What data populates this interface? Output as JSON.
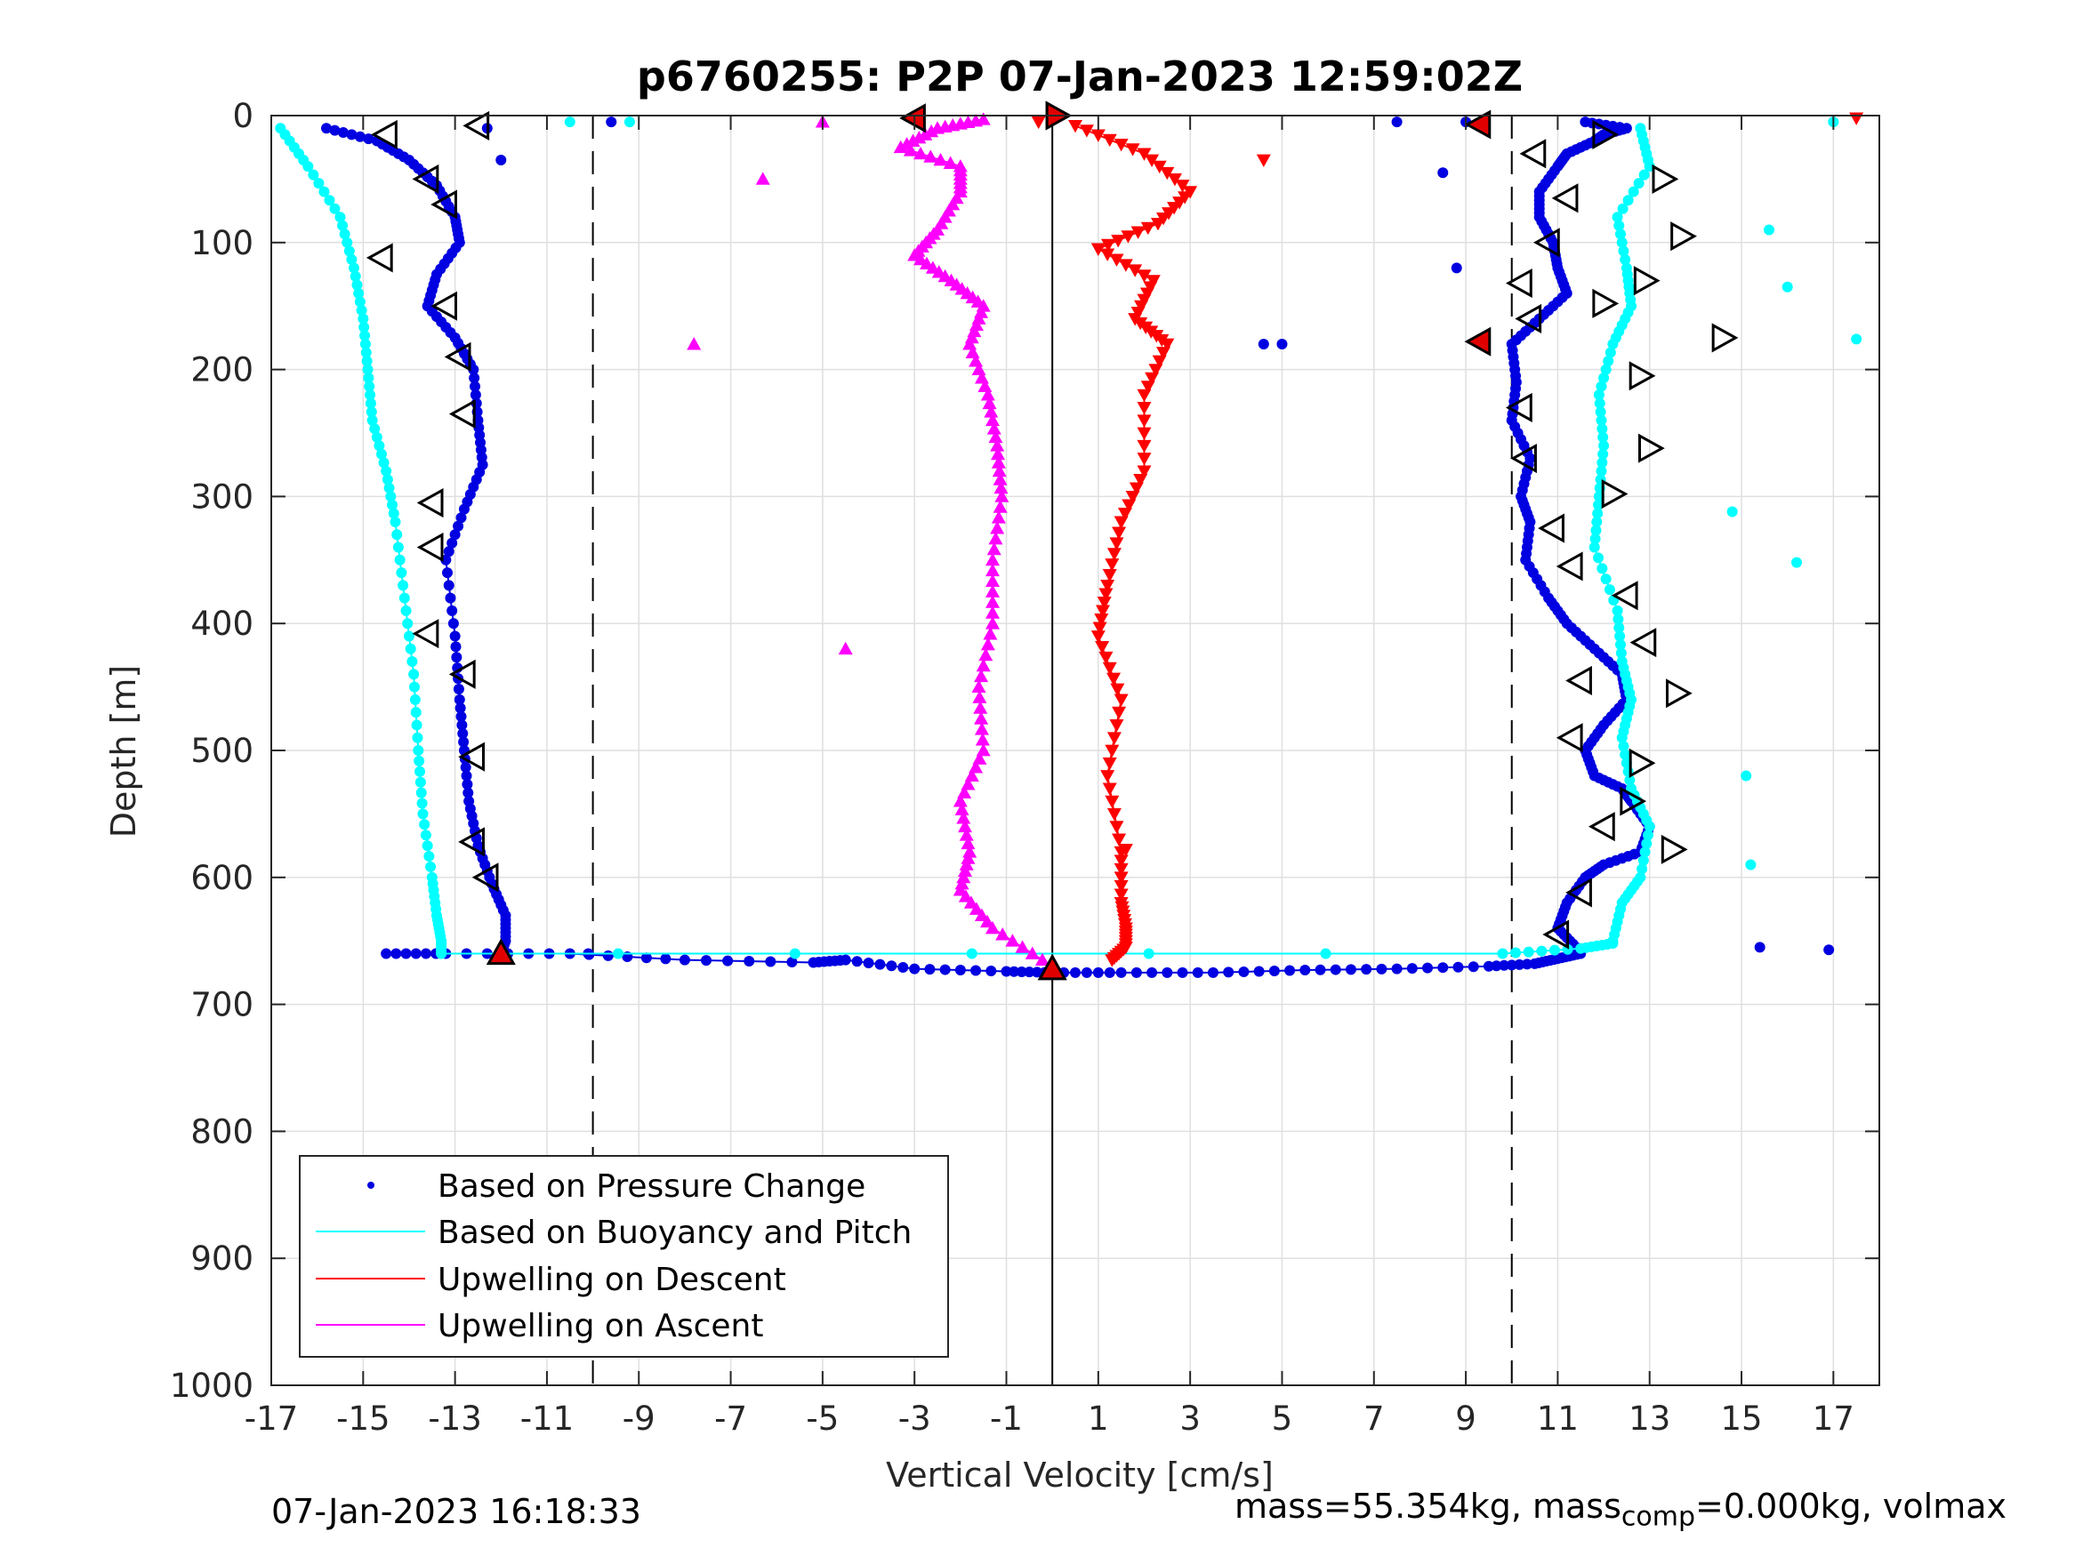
{
  "chart_data": {
    "type": "scatter",
    "title": "p6760255: P2P 07-Jan-2023 12:59:02Z",
    "xlabel": "Vertical Velocity [cm/s]",
    "ylabel": "Depth [m]",
    "xlim": [
      -17,
      18
    ],
    "ylim": [
      0,
      1000
    ],
    "y_reversed": true,
    "grid": true,
    "x_ticks": [
      -17,
      -15,
      -13,
      -11,
      -9,
      -7,
      -5,
      -3,
      -1,
      1,
      3,
      5,
      7,
      9,
      11,
      13,
      15,
      17
    ],
    "x_tick_labels": [
      "-17",
      "-15",
      "-13",
      "-11",
      "-9",
      "-7",
      "-5",
      "-3",
      "-1",
      "1",
      "3",
      "5",
      "7",
      "9",
      "11",
      "13",
      "15",
      "17"
    ],
    "y_ticks": [
      0,
      100,
      200,
      300,
      400,
      500,
      600,
      700,
      800,
      900,
      1000
    ],
    "y_tick_labels": [
      "0",
      "100",
      "200",
      "300",
      "400",
      "500",
      "600",
      "700",
      "800",
      "900",
      "1000"
    ],
    "reference_lines": [
      {
        "x": -10,
        "style": "dashed"
      },
      {
        "x": 10,
        "style": "dashed"
      },
      {
        "x": 0,
        "style": "solid"
      }
    ],
    "legend_position": "bottom-left",
    "legend": [
      {
        "label": "Based on Pressure Change",
        "color": "#0000e0",
        "marker": "dot"
      },
      {
        "label": "Based on Buoyancy and Pitch",
        "color": "#00ffff",
        "marker": "line"
      },
      {
        "label": "Upwelling on Descent",
        "color": "#ff0000",
        "marker": "line"
      },
      {
        "label": "Upwelling on Ascent",
        "color": "#ff00ff",
        "marker": "line"
      }
    ],
    "series": [
      {
        "name": "Based on Pressure Change",
        "color": "#0000e0",
        "segments": [
          {
            "x": [
              -15.8,
              -14.7,
              -14.0,
              -13.4,
              -13.0,
              -12.9,
              -13.4,
              -13.6,
              -13.0,
              -12.6,
              -12.5,
              -12.4,
              -12.8,
              -13.2,
              -13.0,
              -12.9,
              -12.8,
              -12.7,
              -12.5,
              -12.2,
              -11.9,
              -11.9,
              -12.0
            ],
            "y": [
              10,
              20,
              35,
              55,
              80,
              100,
              125,
              150,
              175,
              200,
              240,
              275,
              310,
              350,
              410,
              460,
              500,
              540,
              575,
              605,
              630,
              650,
              660
            ]
          },
          {
            "x": [
              -14.5,
              -13.2,
              -10.5,
              -8.0,
              -5.2,
              -4.5,
              -3.0,
              -1.0,
              0.0,
              1.5,
              3.5,
              5.5,
              7.5,
              9.5,
              10.5,
              11.0,
              11.5
            ],
            "y": [
              660,
              660,
              660,
              665,
              667,
              665,
              672,
              674,
              675,
              675,
              675,
              673,
              672,
              670,
              668,
              664,
              660
            ]
          },
          {
            "x": [
              11.4,
              11.0,
              11.2,
              11.6,
              12.0,
              12.8,
              13.0,
              12.6,
              12.4,
              11.8,
              11.6,
              12.0,
              12.5,
              12.4,
              11.8,
              11.2,
              10.8,
              10.3,
              10.4,
              10.2,
              10.4,
              10.0,
              10.1,
              10.0,
              10.6,
              11.2,
              11.0,
              10.9,
              10.6,
              10.6,
              11.0,
              11.2,
              11.8,
              12.0,
              12.5,
              11.6
            ],
            "y": [
              655,
              640,
              620,
              600,
              590,
              580,
              560,
              540,
              530,
              520,
              500,
              480,
              460,
              440,
              420,
              400,
              380,
              350,
              320,
              300,
              270,
              240,
              210,
              180,
              160,
              140,
              120,
              100,
              80,
              60,
              40,
              30,
              20,
              15,
              10,
              5
            ]
          }
        ],
        "outliers": [
          {
            "x": 9.0,
            "y": 5
          },
          {
            "x": 7.5,
            "y": 5
          },
          {
            "x": 8.5,
            "y": 45
          },
          {
            "x": 8.8,
            "y": 120
          },
          {
            "x": 4.6,
            "y": 180
          },
          {
            "x": 5.0,
            "y": 180
          },
          {
            "x": 15.4,
            "y": 655
          },
          {
            "x": 16.9,
            "y": 657
          },
          {
            "x": -10.1,
            "y": 660
          },
          {
            "x": -12.3,
            "y": 10
          },
          {
            "x": -12.0,
            "y": 35
          },
          {
            "x": -9.6,
            "y": 5
          }
        ]
      },
      {
        "name": "Based on Buoyancy and Pitch",
        "color": "#00ffff",
        "segments": [
          {
            "x": [
              -16.8,
              -16.2,
              -15.5,
              -15.2,
              -15.0,
              -14.9,
              -14.8,
              -14.5,
              -14.3,
              -14.1,
              -13.9,
              -13.8,
              -13.7,
              -13.5,
              -13.4,
              -13.3,
              -13.3
            ],
            "y": [
              10,
              40,
              80,
              120,
              160,
              200,
              240,
              280,
              320,
              380,
              440,
              500,
              550,
              600,
              630,
              650,
              660
            ]
          },
          {
            "x": [
              -13.3,
              9.8,
              11.5,
              12.2
            ],
            "y": [
              660,
              660,
              656,
              652
            ]
          },
          {
            "x": [
              12.2,
              12.4,
              12.8,
              13.0,
              12.6,
              12.4,
              12.6,
              12.4,
              12.3,
              11.8,
              11.9,
              12.0,
              11.9,
              12.2,
              12.6,
              12.5,
              12.3,
              13.0,
              12.8
            ],
            "y": [
              650,
              620,
              600,
              560,
              530,
              490,
              460,
              430,
              390,
              340,
              300,
              260,
              220,
              180,
              150,
              120,
              80,
              40,
              10
            ]
          }
        ],
        "outliers": [
          {
            "x": 17.0,
            "y": 5
          },
          {
            "x": 16.0,
            "y": 135
          },
          {
            "x": 17.5,
            "y": 176
          },
          {
            "x": 16.2,
            "y": 352
          },
          {
            "x": 15.2,
            "y": 590
          },
          {
            "x": 14.8,
            "y": 312
          },
          {
            "x": 15.1,
            "y": 520
          },
          {
            "x": 15.6,
            "y": 90
          },
          {
            "x": -10.5,
            "y": 5
          },
          {
            "x": -9.2,
            "y": 5
          }
        ]
      },
      {
        "name": "Upwelling on Descent",
        "color": "#ff0000",
        "marker": "triangle-down",
        "segments": [
          {
            "x": [
              0.5,
              2.0,
              3.0,
              2.3,
              1.0,
              2.2,
              1.8,
              2.5,
              2.0,
              2.0,
              1.5,
              1.2,
              1.0,
              1.5,
              1.2,
              1.5,
              1.5,
              1.6,
              1.6,
              1.3
            ],
            "y": [
              8,
              30,
              60,
              85,
              105,
              130,
              160,
              180,
              220,
              280,
              320,
              370,
              410,
              460,
              520,
              580,
              620,
              640,
              655,
              665
            ]
          }
        ],
        "outliers": [
          {
            "x": 17.5,
            "y": 2
          },
          {
            "x": 4.6,
            "y": 35
          },
          {
            "x": 1.6,
            "y": 578
          },
          {
            "x": -0.3,
            "y": 5
          }
        ]
      },
      {
        "name": "Upwelling on Ascent",
        "color": "#ff00ff",
        "marker": "triangle-up",
        "segments": [
          {
            "x": [
              0.0,
              -1.3,
              -2.0,
              -1.8,
              -2.0,
              -1.5,
              -1.6,
              -1.3,
              -1.3,
              -1.1,
              -1.2,
              -1.4,
              -1.8,
              -1.5,
              -2.2,
              -3.0,
              -2.5,
              -2.0,
              -2.0,
              -3.3,
              -2.5,
              -1.5
            ],
            "y": [
              670,
              640,
              610,
              580,
              540,
              500,
              450,
              400,
              350,
              300,
              260,
              220,
              180,
              150,
              130,
              110,
              90,
              60,
              40,
              25,
              10,
              3
            ]
          }
        ],
        "outliers": [
          {
            "x": -7.8,
            "y": 180
          },
          {
            "x": -6.3,
            "y": 50
          },
          {
            "x": -5.0,
            "y": 5
          },
          {
            "x": -4.5,
            "y": 420
          }
        ]
      },
      {
        "name": "",
        "color": "#000000",
        "marker": "open-triangle-left",
        "points": [
          {
            "x": -12.5,
            "y": 8
          },
          {
            "x": -14.5,
            "y": 15
          },
          {
            "x": -13.6,
            "y": 50
          },
          {
            "x": -13.2,
            "y": 70
          },
          {
            "x": -14.6,
            "y": 112
          },
          {
            "x": -13.2,
            "y": 150
          },
          {
            "x": -12.9,
            "y": 190
          },
          {
            "x": -12.8,
            "y": 235
          },
          {
            "x": -13.5,
            "y": 305
          },
          {
            "x": -13.5,
            "y": 340
          },
          {
            "x": -13.6,
            "y": 408
          },
          {
            "x": -12.8,
            "y": 440
          },
          {
            "x": -12.6,
            "y": 505
          },
          {
            "x": -12.6,
            "y": 572
          },
          {
            "x": -12.3,
            "y": 600
          },
          {
            "x": 10.5,
            "y": 30
          },
          {
            "x": 11.2,
            "y": 65
          },
          {
            "x": 10.8,
            "y": 100
          },
          {
            "x": 10.2,
            "y": 132
          },
          {
            "x": 10.4,
            "y": 160
          },
          {
            "x": 10.2,
            "y": 230
          },
          {
            "x": 10.3,
            "y": 270
          },
          {
            "x": 10.9,
            "y": 325
          },
          {
            "x": 11.3,
            "y": 355
          },
          {
            "x": 11.5,
            "y": 445
          },
          {
            "x": 11.3,
            "y": 490
          },
          {
            "x": 12.0,
            "y": 560
          },
          {
            "x": 11.5,
            "y": 612
          },
          {
            "x": 11.0,
            "y": 645
          },
          {
            "x": 12.5,
            "y": 378
          },
          {
            "x": 12.9,
            "y": 415
          }
        ]
      },
      {
        "name": "",
        "color": "#000000",
        "marker": "open-triangle-right",
        "points": [
          {
            "x": 0.1,
            "y": 0
          },
          {
            "x": 12.0,
            "y": 15
          },
          {
            "x": 13.3,
            "y": 50
          },
          {
            "x": 13.7,
            "y": 95
          },
          {
            "x": 12.9,
            "y": 130
          },
          {
            "x": 12.0,
            "y": 148
          },
          {
            "x": 14.6,
            "y": 175
          },
          {
            "x": 12.8,
            "y": 205
          },
          {
            "x": 13.0,
            "y": 262
          },
          {
            "x": 12.2,
            "y": 298
          },
          {
            "x": 13.6,
            "y": 455
          },
          {
            "x": 13.5,
            "y": 578
          },
          {
            "x": 12.8,
            "y": 510
          },
          {
            "x": 12.6,
            "y": 540
          }
        ]
      },
      {
        "name": "",
        "color": "#e00000",
        "marker": "filled-triangle-left",
        "points": [
          {
            "x": -3.0,
            "y": 2
          },
          {
            "x": 9.3,
            "y": 7
          },
          {
            "x": 9.3,
            "y": 178
          }
        ]
      },
      {
        "name": "",
        "color": "#e00000",
        "marker": "filled-triangle-right",
        "points": [
          {
            "x": 0.1,
            "y": 0
          }
        ]
      },
      {
        "name": "",
        "color": "#e00000",
        "marker": "filled-triangle-up",
        "points": [
          {
            "x": -12.0,
            "y": 660
          },
          {
            "x": 0.0,
            "y": 672
          }
        ]
      }
    ]
  },
  "footer": {
    "timestamp": "07-Jan-2023 16:18:33",
    "mass_info_pre": "mass=55.354kg, mass",
    "mass_info_sub": "comp",
    "mass_info_post": "=0.000kg, volmax"
  }
}
